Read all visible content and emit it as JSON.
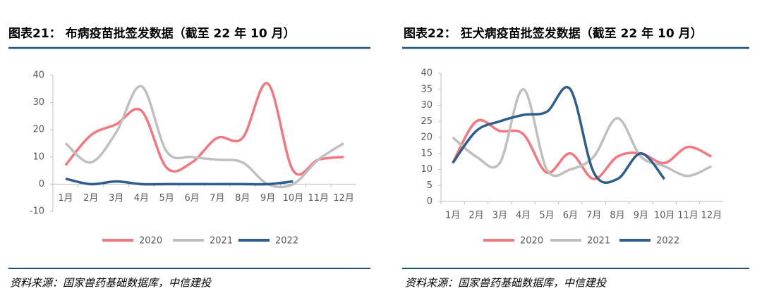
{
  "chart_data": [
    {
      "type": "line",
      "title": "图表21： 布病疫苗批签发数据（截至 22 年 10 月）",
      "source": "资料来源：国家兽药基础数据库，中信建投",
      "categories": [
        "1月",
        "2月",
        "3月",
        "4月",
        "5月",
        "6月",
        "7月",
        "8月",
        "9月",
        "10月",
        "11月",
        "12月"
      ],
      "ylim": [
        -10,
        40
      ],
      "yticks": [
        -10,
        0,
        10,
        20,
        30,
        40
      ],
      "series": [
        {
          "name": "2020",
          "color": "#f4777f",
          "values": [
            7,
            18,
            22,
            27,
            6,
            8,
            17,
            17,
            37,
            5,
            9,
            10
          ]
        },
        {
          "name": "2021",
          "color": "#bfbfbf",
          "values": [
            15,
            8,
            19,
            36,
            12,
            10,
            9,
            8,
            0,
            0,
            9,
            15
          ]
        },
        {
          "name": "2022",
          "color": "#2f5d8c",
          "values": [
            2,
            0,
            1,
            0,
            0,
            0,
            0,
            0,
            0,
            1,
            null,
            null
          ]
        }
      ]
    },
    {
      "type": "line",
      "title": "图表22： 狂犬病疫苗批签发数据（截至 22 年 10 月）",
      "source": "资料来源：国家兽药基础数据库，中信建投",
      "categories": [
        "1月",
        "2月",
        "3月",
        "4月",
        "5月",
        "6月",
        "7月",
        "8月",
        "9月",
        "10月",
        "11月",
        "12月"
      ],
      "ylim": [
        0,
        40
      ],
      "yticks": [
        0,
        5,
        10,
        15,
        20,
        25,
        30,
        35,
        40
      ],
      "series": [
        {
          "name": "2020",
          "color": "#f4777f",
          "values": [
            12,
            25,
            22,
            21,
            9,
            15,
            7,
            14,
            15,
            12,
            17,
            14
          ]
        },
        {
          "name": "2021",
          "color": "#bfbfbf",
          "values": [
            20,
            14,
            12,
            35,
            10,
            10,
            14,
            26,
            14,
            11,
            8,
            11
          ]
        },
        {
          "name": "2022",
          "color": "#2f5d8c",
          "values": [
            12,
            22,
            25,
            27,
            28,
            35,
            9,
            7,
            15,
            7,
            null,
            null
          ]
        }
      ]
    }
  ]
}
